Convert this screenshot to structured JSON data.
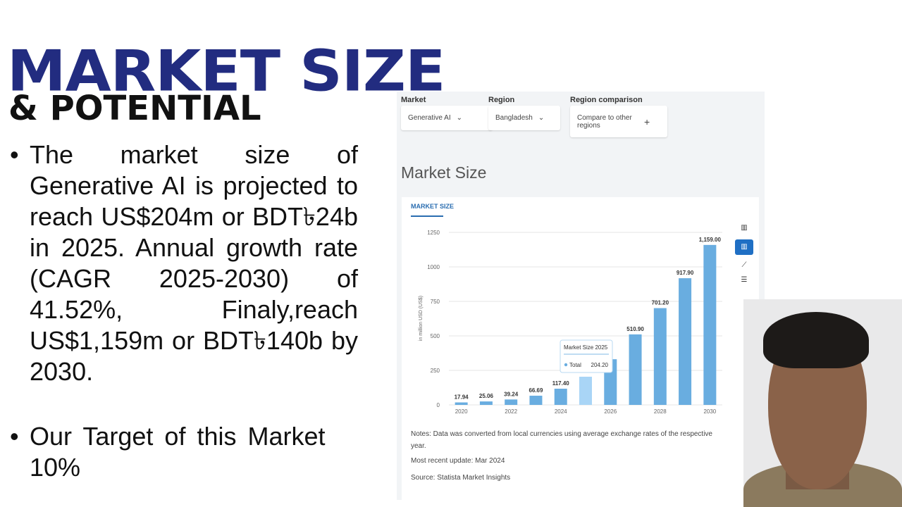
{
  "slide": {
    "title": "MARKET SIZE",
    "subtitle": "& POTENTIAL",
    "bullets": [
      "The market size of Generative AI is projected to reach US$204m or BDT৳24b in 2025. Annual growth rate (CAGR 2025-2030) of 41.52%, Finaly,reach US$1,159m or BDT৳140b by 2030.",
      "Our Target of this Market 10%"
    ]
  },
  "panel": {
    "filters": [
      {
        "label": "Market",
        "value": "Generative AI"
      },
      {
        "label": "Region",
        "value": "Bangladesh"
      },
      {
        "label": "Region comparison",
        "value": "Compare to other regions"
      }
    ],
    "heading": "Market Size",
    "tab": "MARKET SIZE",
    "chart": {
      "type": "bar",
      "ylabel": "in million USD (US$)",
      "categories": [
        "2020",
        null,
        "2022",
        null,
        "2024",
        null,
        "2026",
        null,
        "2028",
        null,
        "2030"
      ],
      "values": [
        17.94,
        25.06,
        39.24,
        66.69,
        117.4,
        204.2,
        330.9,
        510.9,
        701.2,
        917.9,
        1159.0
      ],
      "value_labels": [
        "17.94",
        "25.06",
        "39.24",
        "66.69",
        "117.40",
        "204.20",
        null,
        "510.90",
        "701.20",
        "917.90",
        "1,159.00"
      ],
      "color": "#69ade0",
      "highlight_color": "#a9d5f6",
      "ylim": [
        0,
        1250
      ],
      "yticks": [
        0,
        250,
        500,
        750,
        1000,
        1250
      ],
      "tooltip": {
        "title": "Market Size 2025",
        "name": "Total"
      }
    },
    "notes": [
      "Notes: Data was converted from local currencies using average exchange rates of the respective year.",
      "Most recent update: Mar 2024",
      "Source: Statista Market Insights"
    ]
  }
}
